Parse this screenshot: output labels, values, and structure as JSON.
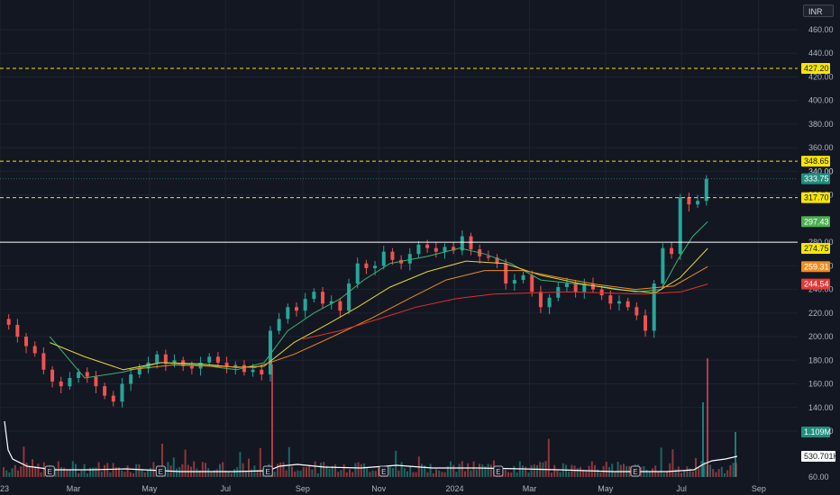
{
  "header": {
    "currency": "INR"
  },
  "colors": {
    "background": "#131722",
    "grid": "#1f2330",
    "up": "#26a69a",
    "down": "#ef5350",
    "level": "#f7e600",
    "support_line": "#ffffff",
    "ma_fast": "#3cb371",
    "ma_mid": "#e6d43a",
    "ma_slow": "#f08c1e",
    "ma_long": "#e03030",
    "volume_avg": "#ffffff"
  },
  "chart_data": {
    "type": "candlestick",
    "currency": "INR",
    "y_axis": {
      "ylim": [
        110,
        470
      ],
      "ticks": [
        120,
        140,
        160,
        180,
        200,
        220,
        240,
        260,
        280,
        320,
        340,
        360,
        380,
        400,
        420,
        440,
        460
      ]
    },
    "x_axis": {
      "labels": [
        "23",
        "Mar",
        "May",
        "Jul",
        "Sep",
        "Nov",
        "2024",
        "Mar",
        "May",
        "Jul",
        "Sep"
      ],
      "range": [
        "2023-01-01",
        "2024-09-25"
      ]
    },
    "price_levels": [
      {
        "label": "427.20",
        "value": 427.2,
        "style": "dashed",
        "color": "#f7e600"
      },
      {
        "label": "348.65",
        "value": 348.65,
        "style": "dashed",
        "color": "#f7e600"
      },
      {
        "label": "317.70",
        "value": 317.7,
        "style": "dashed",
        "color": "#f7e600"
      },
      {
        "label": "280.00",
        "value": 280,
        "style": "solid",
        "color": "#ffffff"
      }
    ],
    "last_price": {
      "value": 333.75,
      "label": "333.75",
      "extra_tick": "340.00"
    },
    "moving_averages": [
      {
        "label": "297.43",
        "value": 297.43,
        "color": "#4caf50"
      },
      {
        "label": "274.75",
        "value": 274.75,
        "color": "#f7e600"
      },
      {
        "label": "259.31",
        "value": 259.31,
        "color": "#f08c1e"
      },
      {
        "label": "244.54",
        "value": 244.54,
        "color": "#e03030"
      }
    ],
    "ma_paths": [
      {
        "color": "#3cb371",
        "points": [
          [
            "2023-02-10",
            200
          ],
          [
            "2023-03-10",
            165
          ],
          [
            "2023-04-10",
            170
          ],
          [
            "2023-05-10",
            178
          ],
          [
            "2023-06-10",
            176
          ],
          [
            "2023-07-10",
            172
          ],
          [
            "2023-08-01",
            178
          ],
          [
            "2023-08-20",
            205
          ],
          [
            "2023-09-10",
            220
          ],
          [
            "2023-10-01",
            232
          ],
          [
            "2023-10-20",
            248
          ],
          [
            "2023-11-10",
            262
          ],
          [
            "2023-12-10",
            268
          ],
          [
            "2024-01-05",
            275
          ],
          [
            "2024-01-25",
            270
          ],
          [
            "2024-02-15",
            262
          ],
          [
            "2024-03-10",
            248
          ],
          [
            "2024-04-05",
            245
          ],
          [
            "2024-05-01",
            242
          ],
          [
            "2024-05-25",
            238
          ],
          [
            "2024-06-15",
            240
          ],
          [
            "2024-06-28",
            265
          ],
          [
            "2024-07-10",
            285
          ],
          [
            "2024-07-22",
            297.4
          ]
        ]
      },
      {
        "color": "#e6d43a",
        "points": [
          [
            "2023-02-10",
            195
          ],
          [
            "2023-03-10",
            183
          ],
          [
            "2023-04-10",
            172
          ],
          [
            "2023-05-10",
            178
          ],
          [
            "2023-06-10",
            177
          ],
          [
            "2023-07-10",
            174
          ],
          [
            "2023-08-01",
            175
          ],
          [
            "2023-08-25",
            195
          ],
          [
            "2023-09-20",
            210
          ],
          [
            "2023-10-15",
            225
          ],
          [
            "2023-11-10",
            242
          ],
          [
            "2023-12-10",
            255
          ],
          [
            "2024-01-10",
            264
          ],
          [
            "2024-02-10",
            262
          ],
          [
            "2024-03-10",
            252
          ],
          [
            "2024-04-10",
            245
          ],
          [
            "2024-05-10",
            240
          ],
          [
            "2024-06-10",
            237
          ],
          [
            "2024-06-30",
            250
          ],
          [
            "2024-07-22",
            274.75
          ]
        ]
      },
      {
        "color": "#f08c1e",
        "points": [
          [
            "2023-04-15",
            172
          ],
          [
            "2023-05-20",
            176
          ],
          [
            "2023-06-20",
            175
          ],
          [
            "2023-07-25",
            174
          ],
          [
            "2023-08-25",
            185
          ],
          [
            "2023-09-25",
            200
          ],
          [
            "2023-10-25",
            215
          ],
          [
            "2023-11-25",
            232
          ],
          [
            "2023-12-25",
            248
          ],
          [
            "2024-01-25",
            256
          ],
          [
            "2024-02-25",
            256
          ],
          [
            "2024-03-25",
            250
          ],
          [
            "2024-04-25",
            244
          ],
          [
            "2024-05-25",
            240
          ],
          [
            "2024-06-25",
            243
          ],
          [
            "2024-07-22",
            259.31
          ]
        ]
      },
      {
        "color": "#e03030",
        "points": [
          [
            "2023-09-01",
            198
          ],
          [
            "2023-10-01",
            205
          ],
          [
            "2023-11-01",
            215
          ],
          [
            "2023-12-01",
            225
          ],
          [
            "2024-01-01",
            232
          ],
          [
            "2024-02-01",
            236
          ],
          [
            "2024-03-01",
            237
          ],
          [
            "2024-04-01",
            238
          ],
          [
            "2024-05-01",
            237
          ],
          [
            "2024-06-01",
            236
          ],
          [
            "2024-07-01",
            238
          ],
          [
            "2024-07-22",
            244.54
          ]
        ]
      }
    ],
    "price_series": [
      [
        "2023-01-01",
        215
      ],
      [
        "2023-01-08",
        210
      ],
      [
        "2023-01-15",
        200
      ],
      [
        "2023-01-22",
        192
      ],
      [
        "2023-01-29",
        186
      ],
      [
        "2023-02-05",
        172
      ],
      [
        "2023-02-12",
        162
      ],
      [
        "2023-02-19",
        158
      ],
      [
        "2023-02-26",
        165
      ],
      [
        "2023-03-05",
        170
      ],
      [
        "2023-03-12",
        166
      ],
      [
        "2023-03-19",
        158
      ],
      [
        "2023-03-26",
        150
      ],
      [
        "2023-04-02",
        145
      ],
      [
        "2023-04-09",
        160
      ],
      [
        "2023-04-16",
        168
      ],
      [
        "2023-04-23",
        173
      ],
      [
        "2023-04-30",
        178
      ],
      [
        "2023-05-07",
        185
      ],
      [
        "2023-05-14",
        177
      ],
      [
        "2023-05-21",
        180
      ],
      [
        "2023-05-28",
        175
      ],
      [
        "2023-06-04",
        173
      ],
      [
        "2023-06-11",
        178
      ],
      [
        "2023-06-18",
        183
      ],
      [
        "2023-06-25",
        178
      ],
      [
        "2023-07-02",
        174
      ],
      [
        "2023-07-09",
        176
      ],
      [
        "2023-07-16",
        170
      ],
      [
        "2023-07-23",
        172
      ],
      [
        "2023-07-30",
        168
      ],
      [
        "2023-08-06",
        205
      ],
      [
        "2023-08-13",
        215
      ],
      [
        "2023-08-20",
        225
      ],
      [
        "2023-08-27",
        222
      ],
      [
        "2023-09-03",
        232
      ],
      [
        "2023-09-10",
        238
      ],
      [
        "2023-09-17",
        228
      ],
      [
        "2023-09-24",
        230
      ],
      [
        "2023-10-01",
        222
      ],
      [
        "2023-10-08",
        245
      ],
      [
        "2023-10-15",
        262
      ],
      [
        "2023-10-22",
        258
      ],
      [
        "2023-10-29",
        260
      ],
      [
        "2023-11-05",
        272
      ],
      [
        "2023-11-12",
        265
      ],
      [
        "2023-11-19",
        262
      ],
      [
        "2023-11-26",
        270
      ],
      [
        "2023-12-03",
        278
      ],
      [
        "2023-12-10",
        275
      ],
      [
        "2023-12-17",
        272
      ],
      [
        "2023-12-24",
        276
      ],
      [
        "2023-12-31",
        273
      ],
      [
        "2024-01-07",
        285
      ],
      [
        "2024-01-14",
        274
      ],
      [
        "2024-01-21",
        268
      ],
      [
        "2024-01-28",
        267
      ],
      [
        "2024-02-04",
        262
      ],
      [
        "2024-02-11",
        245
      ],
      [
        "2024-02-18",
        248
      ],
      [
        "2024-02-25",
        252
      ],
      [
        "2024-03-03",
        238
      ],
      [
        "2024-03-10",
        225
      ],
      [
        "2024-03-17",
        233
      ],
      [
        "2024-03-24",
        242
      ],
      [
        "2024-03-31",
        245
      ],
      [
        "2024-04-07",
        238
      ],
      [
        "2024-04-14",
        245
      ],
      [
        "2024-04-21",
        240
      ],
      [
        "2024-04-28",
        235
      ],
      [
        "2024-05-05",
        228
      ],
      [
        "2024-05-12",
        230
      ],
      [
        "2024-05-19",
        225
      ],
      [
        "2024-05-26",
        218
      ],
      [
        "2024-06-02",
        205
      ],
      [
        "2024-06-09",
        245
      ],
      [
        "2024-06-16",
        275
      ],
      [
        "2024-06-23",
        270
      ],
      [
        "2024-06-30",
        318
      ],
      [
        "2024-07-07",
        312
      ],
      [
        "2024-07-14",
        315
      ],
      [
        "2024-07-21",
        333.75
      ]
    ],
    "volume": {
      "scale_labels": [
        "1.109M",
        "530.701K",
        "60.00"
      ],
      "current": "1.109M",
      "average": "530.701K",
      "unit_min": "60.00"
    },
    "earnings_markers": [
      "2023-02-10",
      "2023-05-10",
      "2023-08-04",
      "2023-11-05",
      "2024-02-05",
      "2024-05-25"
    ]
  }
}
